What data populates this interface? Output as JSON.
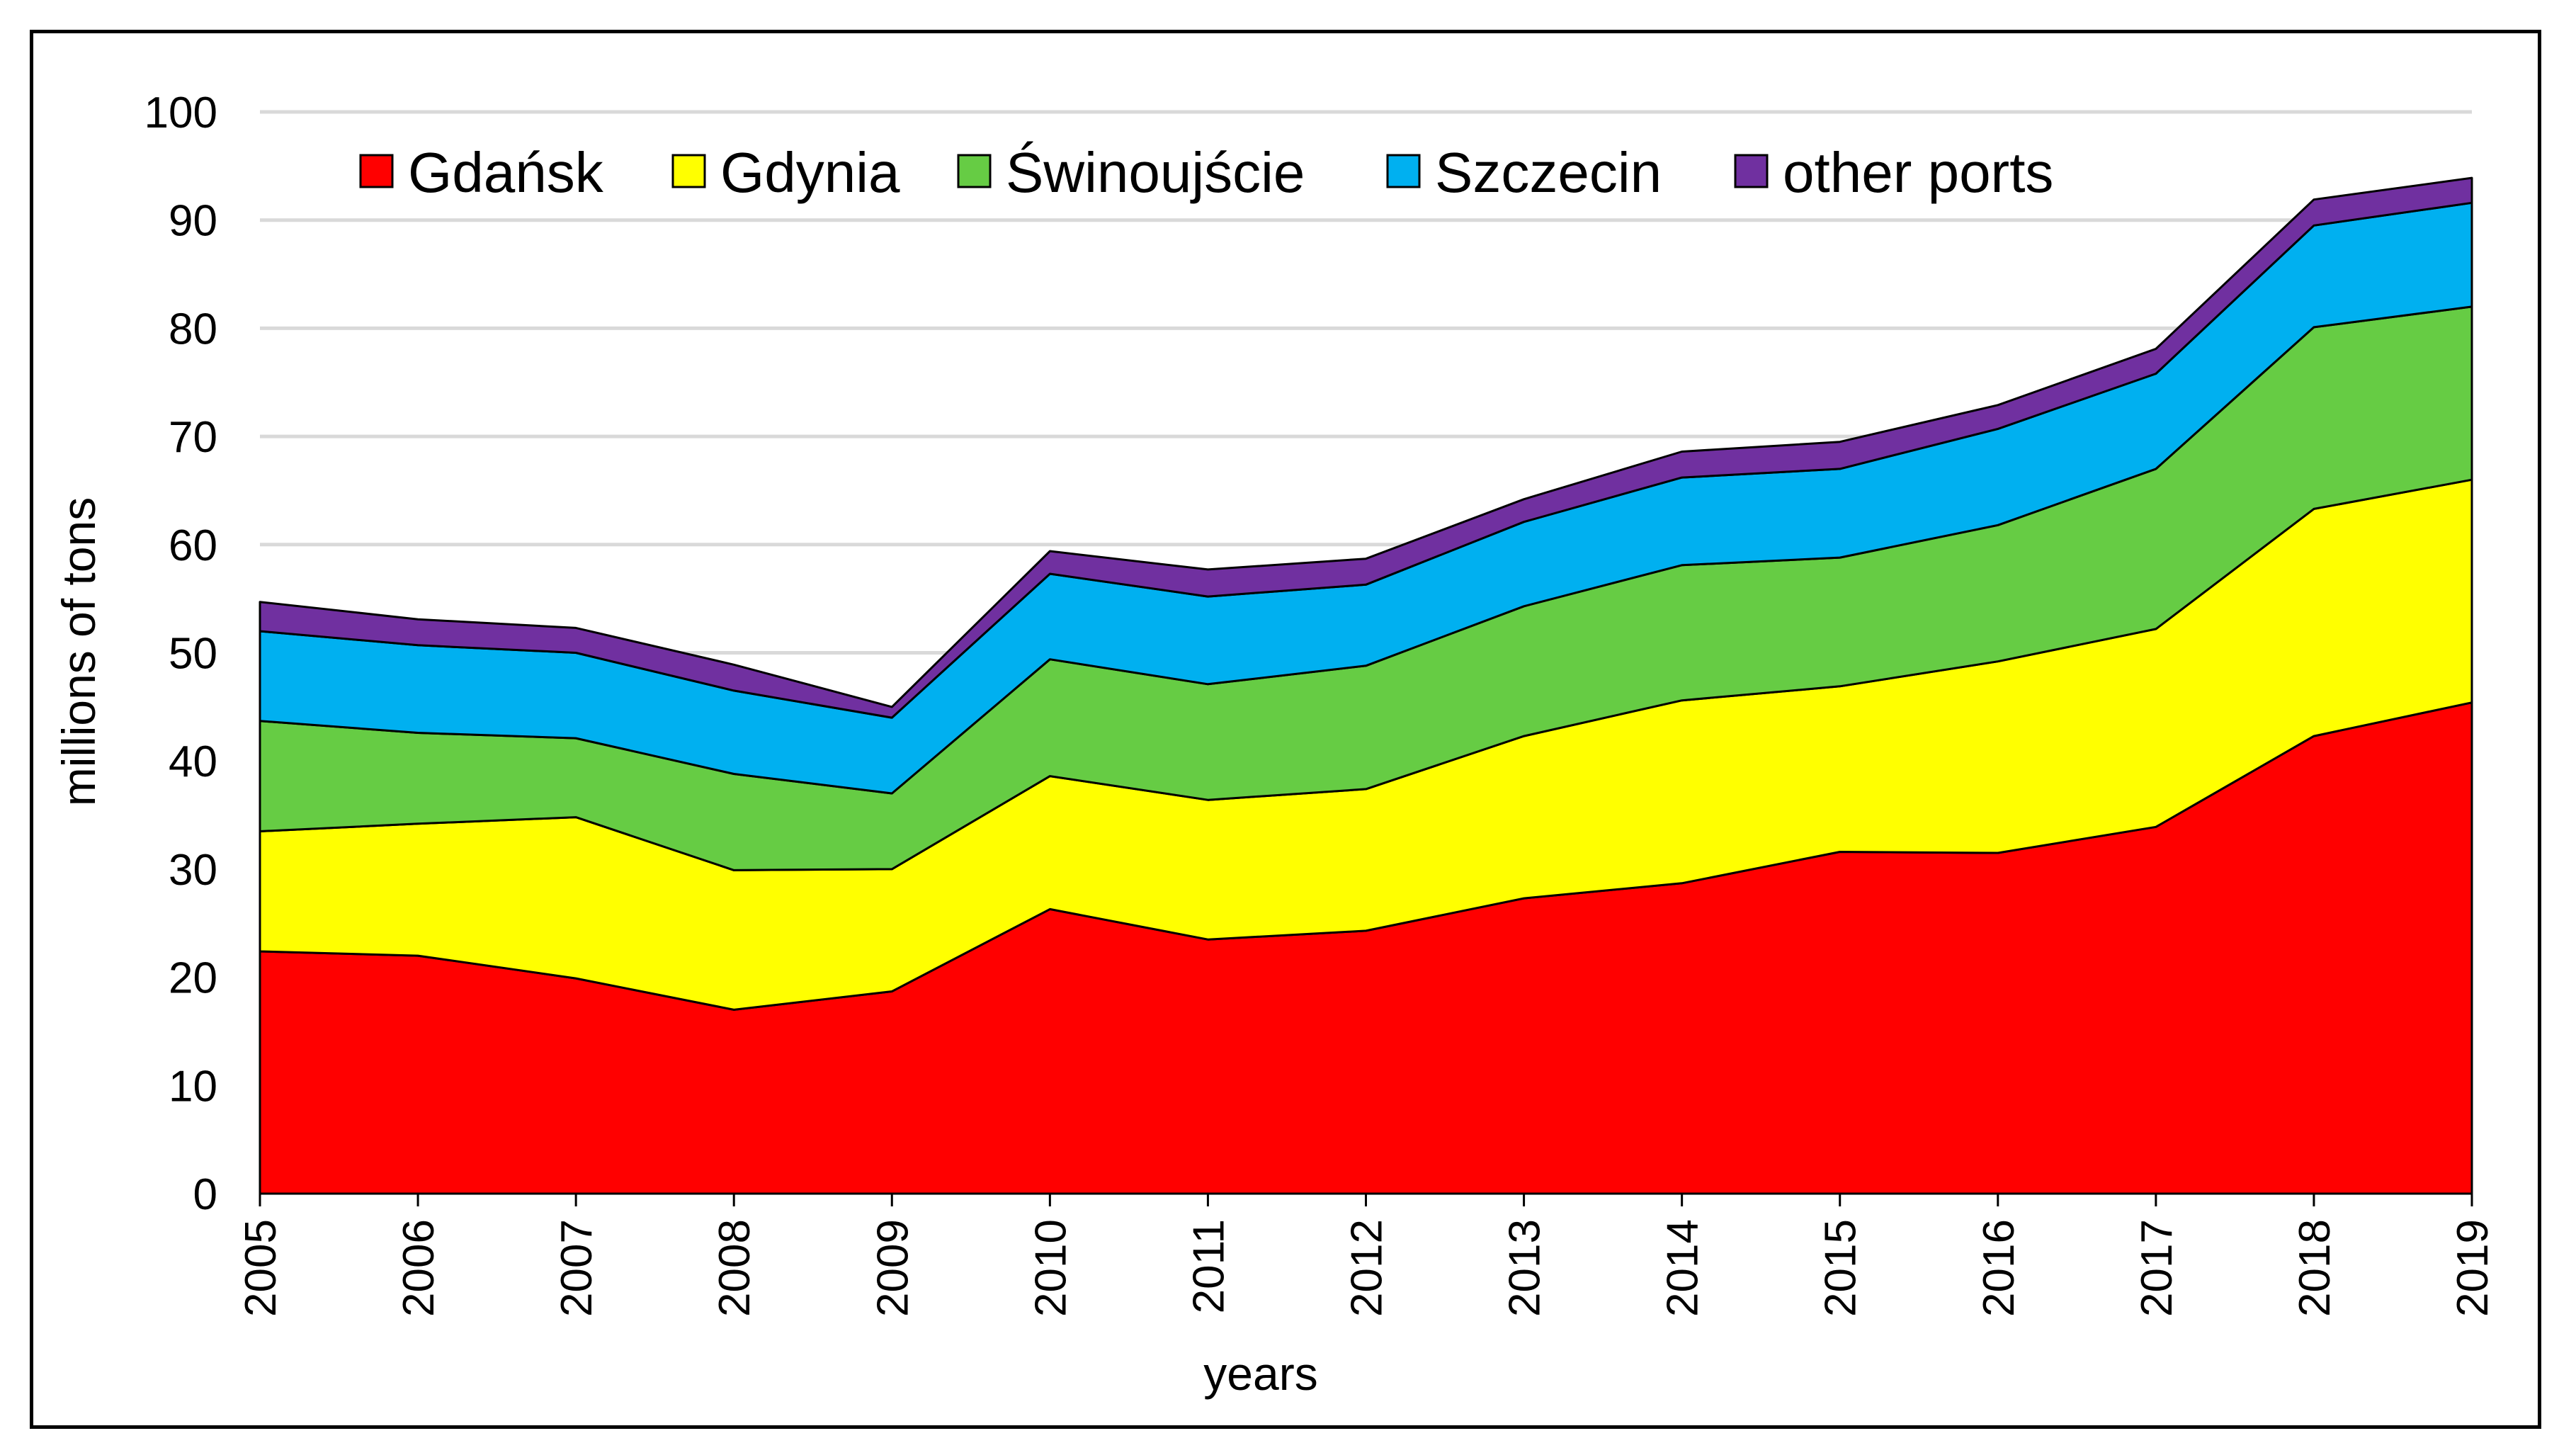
{
  "chart_data": {
    "type": "area",
    "stacked": true,
    "title": "",
    "xlabel": "years",
    "ylabel": "millions of tons",
    "ylim": [
      0,
      100
    ],
    "y_ticks": [
      "0",
      "10",
      "20",
      "30",
      "40",
      "50",
      "60",
      "70",
      "80",
      "90",
      "100"
    ],
    "categories": [
      "2005",
      "2006",
      "2007",
      "2008",
      "2009",
      "2010",
      "2011",
      "2012",
      "2013",
      "2014",
      "2015",
      "2016",
      "2017",
      "2018",
      "2019"
    ],
    "grid": true,
    "legend_position": "top",
    "series": [
      {
        "name": "Gdańsk",
        "color": "#ff0000",
        "values": [
          22.4,
          22.0,
          19.9,
          17.0,
          18.7,
          26.3,
          23.5,
          24.3,
          27.3,
          28.7,
          31.6,
          31.5,
          33.9,
          42.3,
          45.4
        ]
      },
      {
        "name": "Gdynia",
        "color": "#ffff00",
        "values": [
          11.1,
          12.2,
          14.9,
          12.9,
          11.3,
          12.3,
          12.9,
          13.1,
          15.0,
          16.9,
          15.3,
          17.7,
          18.3,
          21.0,
          20.6
        ]
      },
      {
        "name": "Świnoujście",
        "color": "#66cc44",
        "values": [
          10.2,
          8.4,
          7.3,
          8.9,
          7.0,
          10.8,
          10.7,
          11.4,
          12.0,
          12.5,
          11.9,
          12.6,
          14.8,
          16.8,
          16.0
        ]
      },
      {
        "name": "Szczecin",
        "color": "#00b0f0",
        "values": [
          8.3,
          8.1,
          7.9,
          7.7,
          7.0,
          7.9,
          8.1,
          7.5,
          7.8,
          8.1,
          8.2,
          8.9,
          8.8,
          9.4,
          9.6
        ]
      },
      {
        "name": "other ports",
        "color": "#7030a0",
        "values": [
          2.7,
          2.4,
          2.3,
          2.4,
          1.0,
          2.1,
          2.5,
          2.4,
          2.1,
          2.4,
          2.5,
          2.2,
          2.3,
          2.4,
          2.3
        ]
      }
    ]
  }
}
